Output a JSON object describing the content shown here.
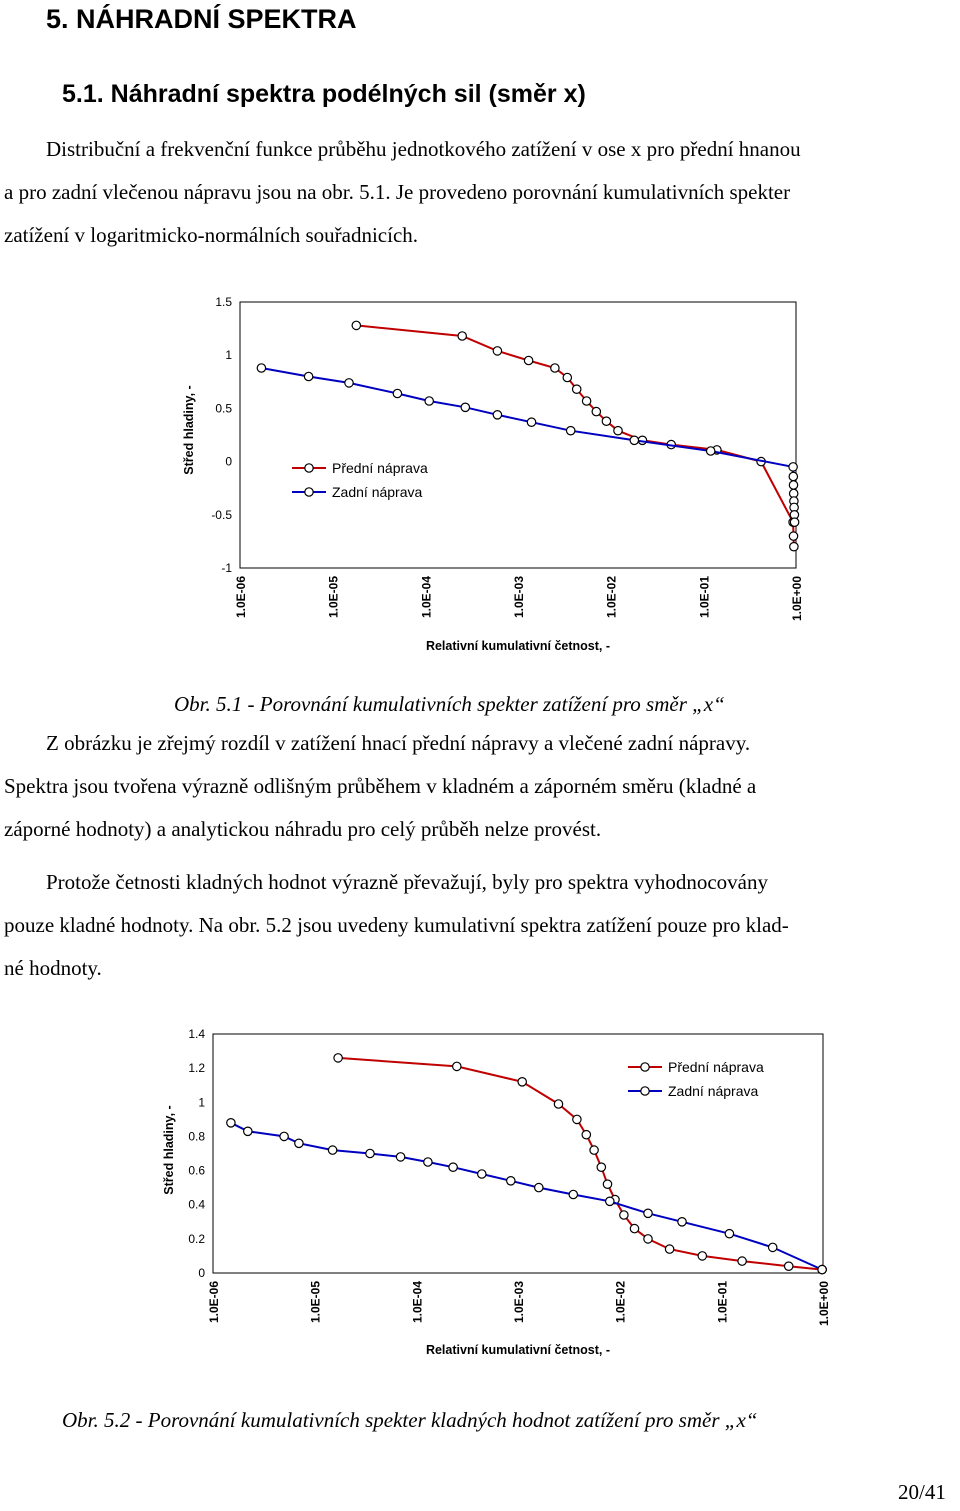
{
  "heading": {
    "section": "5.   NÁHRADNÍ SPEKTRA",
    "subsection": "5.1.  Náhradní spektra podélných sil (směr x)"
  },
  "paragraph1": {
    "line1": "Distribuční a frekvenční funkce průběhu jednotkového zatížení v ose x pro přední hnanou",
    "line2": "a pro zadní vlečenou nápravu jsou na obr. 5.1. Je provedeno porovnání kumulativních spekter",
    "line3": "zatížení v logaritmicko-normálních souřadnicích."
  },
  "caption1": "Obr. 5.1 - Porovnání kumulativních spekter zatížení pro směr „x“",
  "paragraph2": {
    "line1": "Z obrázku je zřejmý rozdíl v zatížení hnací přední nápravy a vlečené zadní nápravy.",
    "line2": "Spektra jsou tvořena výrazně odlišným průběhem v kladném a záporném směru (kladné a",
    "line3": "záporné hodnoty) a analytickou náhradu pro celý průběh nelze provést."
  },
  "paragraph3": {
    "line1": "Protože četnosti kladných hodnot výrazně převažují, byly pro spektra vyhodnocovány",
    "line2": "pouze kladné hodnoty. Na obr. 5.2 jsou uvedeny kumulativní spektra zatížení pouze pro klad-",
    "line3": "né hodnoty."
  },
  "caption2": "Obr. 5.2 - Porovnání kumulativních spekter kladných hodnot zatížení pro směr „x“",
  "page_number": "20/41",
  "colors": {
    "front": "#c00000",
    "rear": "#0000c0",
    "marker_fill": "#ffffff"
  },
  "chart_data": [
    {
      "type": "line",
      "xlabel": "Relativní kumulativní četnost, -",
      "ylabel": "Střed hladiny, -",
      "x_scale": "log",
      "xlim": [
        1e-06,
        1
      ],
      "ylim": [
        -1,
        1.5
      ],
      "x_ticks": [
        "1.0E-06",
        "1.0E-05",
        "1.0E-04",
        "1.0E-03",
        "1.0E-02",
        "1.0E-01",
        "1.0E+00"
      ],
      "y_ticks": [
        "1.5",
        "1",
        "0.5",
        "0",
        "-0.5",
        "-1"
      ],
      "grid": false,
      "legend_position": "center-left",
      "series": [
        {
          "name": "Přední náprava",
          "x": [
            1.8e-05,
            0.00025,
            0.0006,
            0.0013,
            0.0025,
            0.0034,
            0.0043,
            0.0055,
            0.007,
            0.009,
            0.012,
            0.022,
            0.045,
            0.14,
            0.42,
            0.93,
            0.94,
            0.95
          ],
          "y": [
            1.28,
            1.18,
            1.04,
            0.95,
            0.88,
            0.79,
            0.68,
            0.57,
            0.47,
            0.38,
            0.29,
            0.2,
            0.16,
            0.11,
            0.0,
            -0.57,
            -0.7,
            -0.8
          ]
        },
        {
          "name": "Zadní náprava",
          "x": [
            1.7e-06,
            5.5e-06,
            1.5e-05,
            5e-05,
            0.00011,
            0.00027,
            0.0006,
            0.0014,
            0.0037,
            0.018,
            0.12,
            0.93,
            0.935,
            0.94,
            0.945,
            0.95,
            0.955,
            0.96,
            0.965
          ],
          "y": [
            0.88,
            0.8,
            0.74,
            0.64,
            0.57,
            0.51,
            0.44,
            0.37,
            0.29,
            0.2,
            0.1,
            -0.05,
            -0.14,
            -0.22,
            -0.3,
            -0.37,
            -0.43,
            -0.5,
            -0.57
          ]
        }
      ]
    },
    {
      "type": "line",
      "xlabel": "Relativní kumulativní četnost, -",
      "ylabel": "Střed hladiny, -",
      "x_scale": "log",
      "xlim": [
        1e-06,
        1
      ],
      "ylim": [
        0,
        1.4
      ],
      "x_ticks": [
        "1.0E-06",
        "1.0E-05",
        "1.0E-04",
        "1.0E-03",
        "1.0E-02",
        "1.0E-01",
        "1.0E+00"
      ],
      "y_ticks": [
        "1.4",
        "1.2",
        "1",
        "0.8",
        "0.6",
        "0.4",
        "0.2",
        "0"
      ],
      "grid": false,
      "legend_position": "top-right",
      "series": [
        {
          "name": "Přední náprava",
          "x": [
            1.7e-05,
            0.00025,
            0.0011,
            0.0025,
            0.0038,
            0.0047,
            0.0056,
            0.0066,
            0.0076,
            0.009,
            0.011,
            0.014,
            0.019,
            0.031,
            0.065,
            0.16,
            0.46,
            0.98
          ],
          "y": [
            1.26,
            1.21,
            1.12,
            0.99,
            0.9,
            0.81,
            0.72,
            0.62,
            0.52,
            0.43,
            0.34,
            0.26,
            0.2,
            0.14,
            0.1,
            0.07,
            0.04,
            0.02
          ]
        },
        {
          "name": "Zadní náprava",
          "x": [
            1.5e-06,
            2.2e-06,
            5e-06,
            7e-06,
            1.5e-05,
            3.5e-05,
            7e-05,
            0.00013,
            0.00023,
            0.00044,
            0.00085,
            0.0016,
            0.0035,
            0.008,
            0.019,
            0.041,
            0.12,
            0.32,
            0.98
          ],
          "y": [
            0.88,
            0.83,
            0.8,
            0.76,
            0.72,
            0.7,
            0.68,
            0.65,
            0.62,
            0.58,
            0.54,
            0.5,
            0.46,
            0.42,
            0.35,
            0.3,
            0.23,
            0.15,
            0.02
          ]
        }
      ]
    }
  ]
}
